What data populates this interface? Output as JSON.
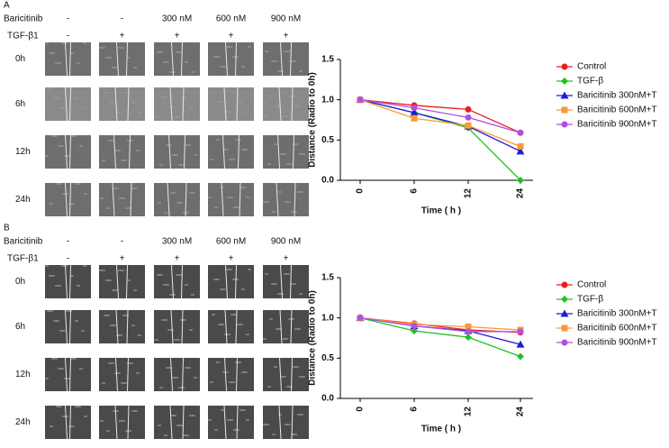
{
  "panels": [
    {
      "label": "A",
      "baricitinib_label": "Baricitinib",
      "baricitinib": [
        "-",
        "-",
        "300 nM",
        "600 nM",
        "900 nM"
      ],
      "tgf_label": "TGF-β1",
      "tgf": [
        "-",
        "+",
        "+",
        "+",
        "+"
      ],
      "times": [
        "0h",
        "6h",
        "12h",
        "24h"
      ]
    },
    {
      "label": "B",
      "baricitinib_label": "Baricitinib",
      "baricitinib": [
        "-",
        "-",
        "300 nM",
        "600 nM",
        "900 nM"
      ],
      "tgf_label": "TGF-β1",
      "tgf": [
        "-",
        "+",
        "+",
        "+",
        "+"
      ],
      "times": [
        "0h",
        "6h",
        "12h",
        "24h"
      ]
    }
  ],
  "chart_data": [
    {
      "type": "line",
      "x_label": "Time ( h )",
      "y_label": "Distance (Radio to 0h)",
      "categories": [
        "0",
        "6",
        "12",
        "24"
      ],
      "ylim": [
        0,
        1.5
      ],
      "yticks": [
        {
          "value": 0,
          "label": "0.0"
        },
        0.5,
        {
          "value": 1,
          "label": "1.0"
        },
        1.5
      ],
      "series": [
        {
          "name": "Control",
          "color": "#e8201e",
          "marker": "circle",
          "values": [
            1.0,
            0.93,
            0.88,
            0.59
          ]
        },
        {
          "name": "TGF-β",
          "color": "#22c022",
          "marker": "diamond",
          "values": [
            1.0,
            0.84,
            0.65,
            0.0
          ]
        },
        {
          "name": "Baricitinib 300nM+T",
          "color": "#1b1bd8",
          "marker": "triangle",
          "values": [
            1.0,
            0.84,
            0.67,
            0.36
          ]
        },
        {
          "name": "Baricitinib 600nM+T",
          "color": "#f79a3a",
          "marker": "square",
          "values": [
            1.0,
            0.77,
            0.68,
            0.42
          ]
        },
        {
          "name": "Baricitinib 900nM+T",
          "color": "#b050e0",
          "marker": "circle",
          "values": [
            1.0,
            0.9,
            0.78,
            0.59
          ]
        }
      ]
    },
    {
      "type": "line",
      "x_label": "Time ( h )",
      "y_label": "Distance (Radio to 0h)",
      "categories": [
        "0",
        "6",
        "12",
        "24"
      ],
      "ylim": [
        0,
        1.5
      ],
      "yticks": [
        {
          "value": 0,
          "label": "0.0"
        },
        0.5,
        {
          "value": 1,
          "label": "1.0"
        },
        1.5
      ],
      "series": [
        {
          "name": "Control",
          "color": "#e8201e",
          "marker": "circle",
          "values": [
            1.0,
            0.93,
            0.85,
            0.82
          ]
        },
        {
          "name": "TGF-β",
          "color": "#22c022",
          "marker": "diamond",
          "values": [
            1.0,
            0.84,
            0.76,
            0.52
          ]
        },
        {
          "name": "Baricitinib 300nM+T",
          "color": "#1b1bd8",
          "marker": "triangle",
          "values": [
            1.0,
            0.9,
            0.84,
            0.67
          ]
        },
        {
          "name": "Baricitinib 600nM+T",
          "color": "#f79a3a",
          "marker": "square",
          "values": [
            1.0,
            0.92,
            0.89,
            0.85
          ]
        },
        {
          "name": "Baricitinib 900nM+T",
          "color": "#b050e0",
          "marker": "circle",
          "values": [
            1.0,
            0.9,
            0.83,
            0.83
          ]
        }
      ]
    }
  ]
}
